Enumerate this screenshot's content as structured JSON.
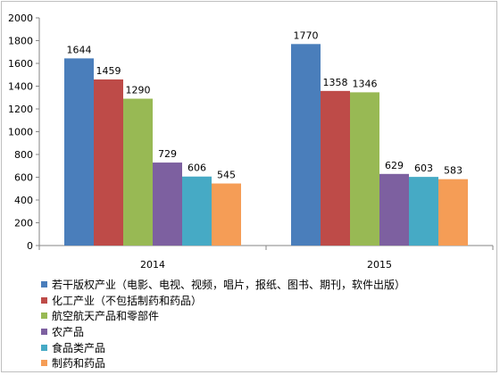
{
  "chart_data": {
    "type": "bar",
    "categories": [
      "2014",
      "2015"
    ],
    "series": [
      {
        "name": "若干版权产业（电影、电视、视频，唱片，报纸、图书、期刊，软件出版）",
        "values": [
          1644,
          1770
        ],
        "color": "#4a7ebb"
      },
      {
        "name": "化工产业（不包括制药和药品）",
        "values": [
          1459,
          1358
        ],
        "color": "#be4b48"
      },
      {
        "name": "航空航天产品和零部件",
        "values": [
          1290,
          1346
        ],
        "color": "#98b954"
      },
      {
        "name": "农产品",
        "values": [
          729,
          629
        ],
        "color": "#7d60a0"
      },
      {
        "name": "食品类产品",
        "values": [
          606,
          603
        ],
        "color": "#46aac5"
      },
      {
        "name": "制药和药品",
        "values": [
          545,
          583
        ],
        "color": "#f59d56"
      }
    ],
    "ylim": [
      0,
      2000
    ],
    "yticks": [
      0,
      200,
      400,
      600,
      800,
      1000,
      1200,
      1400,
      1600,
      1800,
      2000
    ],
    "grid": false,
    "legend": "bottom",
    "data_labels": true
  }
}
